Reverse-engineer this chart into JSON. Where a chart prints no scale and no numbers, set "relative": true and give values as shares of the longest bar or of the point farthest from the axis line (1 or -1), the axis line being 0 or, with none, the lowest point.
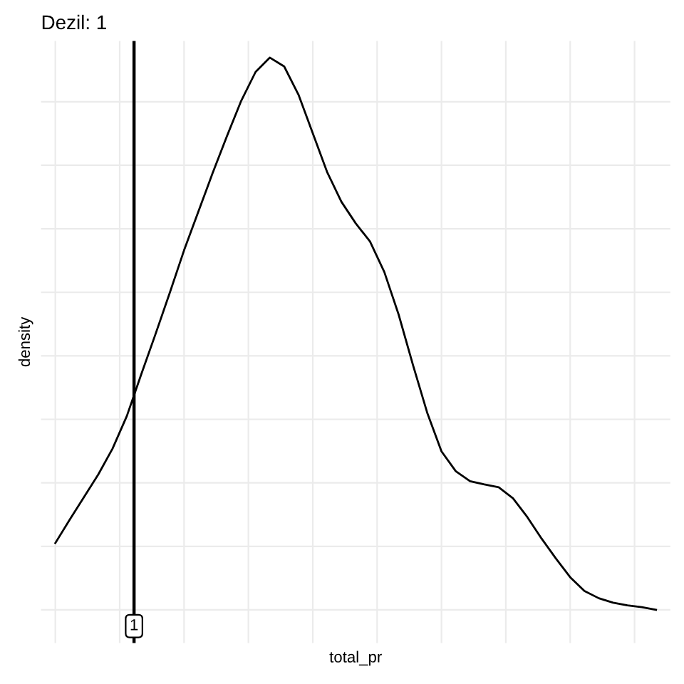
{
  "chart_data": {
    "type": "line",
    "title": "Dezil: 1",
    "xlabel": "total_pr",
    "ylabel": "density",
    "relative": true,
    "grid": true,
    "categories": [
      null,
      null,
      null,
      null,
      null,
      null,
      null,
      null,
      null,
      null,
      null,
      null,
      null,
      null,
      null,
      null,
      null,
      null,
      null,
      null,
      null,
      null,
      null,
      null,
      null,
      null,
      null,
      null,
      null,
      null,
      null,
      null,
      null,
      null,
      null,
      null,
      null,
      null,
      null,
      null,
      null,
      null,
      null
    ],
    "series": [
      {
        "color": "#000000",
        "values": [
          0.121,
          0.163,
          0.204,
          0.245,
          0.292,
          0.351,
          0.426,
          0.499,
          0.574,
          0.651,
          0.721,
          0.791,
          0.858,
          0.922,
          0.974,
          1.0,
          0.984,
          0.933,
          0.863,
          0.793,
          0.739,
          0.7,
          0.667,
          0.612,
          0.535,
          0.444,
          0.357,
          0.287,
          0.251,
          0.233,
          0.227,
          0.222,
          0.202,
          0.168,
          0.129,
          0.093,
          0.059,
          0.034,
          0.021,
          0.013,
          0.008,
          0.005,
          0
        ]
      }
    ],
    "annotations": [
      "1"
    ]
  }
}
